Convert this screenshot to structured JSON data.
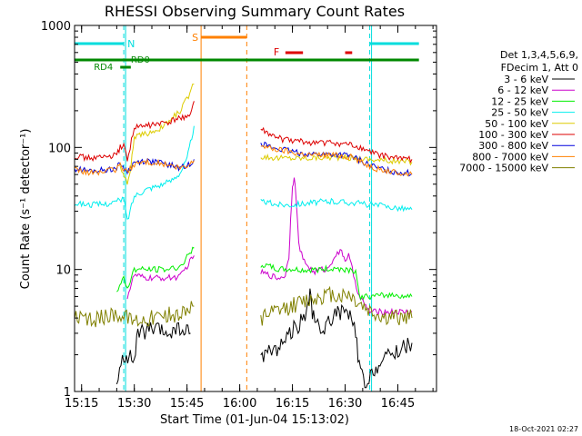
{
  "chart_data": {
    "type": "line",
    "title": "RHESSI Observing Summary Count Rates",
    "xlabel": "Start Time (01-Jun-04 15:13:02)",
    "ylabel": "Count Rate (s⁻¹ detector⁻¹)",
    "yscale": "log",
    "ylim": [
      1,
      1000
    ],
    "xlim_minutes": [
      0,
      103
    ],
    "x_ticks": [
      {
        "label": "15:15",
        "m": 2
      },
      {
        "label": "15:30",
        "m": 17
      },
      {
        "label": "15:45",
        "m": 32
      },
      {
        "label": "16:00",
        "m": 47
      },
      {
        "label": "16:15",
        "m": 62
      },
      {
        "label": "16:30",
        "m": 77
      },
      {
        "label": "16:45",
        "m": 92
      }
    ],
    "y_ticks": [
      {
        "label": "1",
        "v": 1
      },
      {
        "label": "10",
        "v": 10
      },
      {
        "label": "100",
        "v": 100
      },
      {
        "label": "1000",
        "v": 1000
      }
    ],
    "legend_header": [
      "Det 1,3,4,5,6,9,",
      "FDecim 1, Att 0"
    ],
    "legend_position": "right",
    "gap_minutes": [
      35,
      53
    ],
    "series": [
      {
        "name": "3 - 6 keV",
        "color": "#000000",
        "points": [
          [
            12,
            1.1
          ],
          [
            14,
            2
          ],
          [
            17,
            1.8
          ],
          [
            18,
            3
          ],
          [
            22,
            3.2
          ],
          [
            26,
            3
          ],
          [
            30,
            3.2
          ],
          [
            33,
            3
          ],
          [
            53,
            2
          ],
          [
            58,
            2.3
          ],
          [
            62,
            3.2
          ],
          [
            64,
            3.6
          ],
          [
            66,
            4.5
          ],
          [
            67,
            6
          ],
          [
            68,
            4
          ],
          [
            70,
            3
          ],
          [
            73,
            4
          ],
          [
            76,
            4.5
          ],
          [
            78,
            4.3
          ],
          [
            80,
            3
          ],
          [
            81,
            1.6
          ],
          [
            83,
            1
          ],
          [
            85,
            1.5
          ],
          [
            90,
            2
          ],
          [
            96,
            2.5
          ]
        ]
      },
      {
        "name": "6 - 12 keV",
        "color": "#cc00cc",
        "points": [
          [
            15,
            6
          ],
          [
            17,
            9
          ],
          [
            20,
            8.5
          ],
          [
            25,
            8.5
          ],
          [
            30,
            8.7
          ],
          [
            34,
            13
          ],
          [
            53,
            9.5
          ],
          [
            58,
            8.5
          ],
          [
            60,
            9
          ],
          [
            61,
            13
          ],
          [
            61.5,
            26
          ],
          [
            62,
            50
          ],
          [
            62.5,
            55
          ],
          [
            63,
            42
          ],
          [
            63.8,
            16
          ],
          [
            65,
            12
          ],
          [
            68,
            9.5
          ],
          [
            70,
            10
          ],
          [
            72,
            10
          ],
          [
            74,
            13
          ],
          [
            76,
            14
          ],
          [
            77,
            12
          ],
          [
            78,
            13
          ],
          [
            79,
            10
          ],
          [
            81,
            6
          ],
          [
            84,
            4.5
          ],
          [
            88,
            4.5
          ],
          [
            96,
            4.5
          ]
        ]
      },
      {
        "name": "12 - 25 keV",
        "color": "#00ee00",
        "points": [
          [
            12,
            6.5
          ],
          [
            14,
            8.5
          ],
          [
            15,
            7
          ],
          [
            17,
            10
          ],
          [
            22,
            10
          ],
          [
            26,
            10
          ],
          [
            30,
            10.5
          ],
          [
            34,
            15
          ],
          [
            53,
            11
          ],
          [
            58,
            10
          ],
          [
            62,
            10
          ],
          [
            66,
            9.8
          ],
          [
            70,
            10
          ],
          [
            75,
            10.2
          ],
          [
            80,
            9.8
          ],
          [
            81,
            6
          ],
          [
            85,
            6
          ],
          [
            90,
            6.2
          ],
          [
            96,
            6
          ]
        ]
      },
      {
        "name": "25 - 50 keV",
        "color": "#00eeee",
        "points": [
          [
            0,
            35
          ],
          [
            4,
            34
          ],
          [
            8,
            34
          ],
          [
            12,
            36
          ],
          [
            14,
            38
          ],
          [
            15,
            25
          ],
          [
            17,
            40
          ],
          [
            20,
            45
          ],
          [
            23,
            48
          ],
          [
            27,
            52
          ],
          [
            30,
            62
          ],
          [
            32,
            80
          ],
          [
            33,
            110
          ],
          [
            34,
            150
          ],
          [
            53,
            36
          ],
          [
            58,
            34
          ],
          [
            62,
            34
          ],
          [
            66,
            35
          ],
          [
            70,
            36
          ],
          [
            75,
            36
          ],
          [
            80,
            35
          ],
          [
            84,
            34
          ],
          [
            88,
            33
          ],
          [
            92,
            32
          ],
          [
            96,
            31
          ]
        ]
      },
      {
        "name": "50 - 100 keV",
        "color": "#ddcc00",
        "points": [
          [
            13,
            70
          ],
          [
            15,
            50
          ],
          [
            16,
            70
          ],
          [
            17,
            120
          ],
          [
            20,
            128
          ],
          [
            25,
            145
          ],
          [
            30,
            200
          ],
          [
            32,
            250
          ],
          [
            34,
            330
          ],
          [
            53,
            85
          ],
          [
            58,
            82
          ],
          [
            62,
            82
          ],
          [
            66,
            82
          ],
          [
            70,
            83
          ],
          [
            75,
            83
          ],
          [
            80,
            82
          ],
          [
            84,
            80
          ],
          [
            88,
            78
          ],
          [
            92,
            77
          ],
          [
            96,
            76
          ]
        ]
      },
      {
        "name": "100 - 300 keV",
        "color": "#dd0000",
        "points": [
          [
            0,
            85
          ],
          [
            4,
            82
          ],
          [
            8,
            83
          ],
          [
            12,
            86
          ],
          [
            13,
            100
          ],
          [
            14,
            105
          ],
          [
            15,
            80
          ],
          [
            17,
            145
          ],
          [
            20,
            150
          ],
          [
            23,
            155
          ],
          [
            27,
            160
          ],
          [
            30,
            175
          ],
          [
            33,
            185
          ],
          [
            34,
            240
          ],
          [
            53,
            140
          ],
          [
            56,
            125
          ],
          [
            60,
            115
          ],
          [
            64,
            112
          ],
          [
            66,
            110
          ],
          [
            70,
            110
          ],
          [
            75,
            108
          ],
          [
            78,
            105
          ],
          [
            81,
            100
          ],
          [
            84,
            92
          ],
          [
            88,
            85
          ],
          [
            92,
            82
          ],
          [
            96,
            80
          ]
        ]
      },
      {
        "name": "300 - 800 keV",
        "color": "#0000dd",
        "points": [
          [
            0,
            67
          ],
          [
            4,
            64
          ],
          [
            8,
            65
          ],
          [
            12,
            68
          ],
          [
            13,
            74
          ],
          [
            15,
            63
          ],
          [
            17,
            75
          ],
          [
            20,
            78
          ],
          [
            23,
            76
          ],
          [
            27,
            72
          ],
          [
            30,
            68
          ],
          [
            32,
            70
          ],
          [
            34,
            80
          ],
          [
            53,
            110
          ],
          [
            56,
            100
          ],
          [
            60,
            95
          ],
          [
            64,
            90
          ],
          [
            68,
            88
          ],
          [
            72,
            88
          ],
          [
            76,
            87
          ],
          [
            79,
            84
          ],
          [
            82,
            76
          ],
          [
            86,
            68
          ],
          [
            90,
            64
          ],
          [
            94,
            62
          ],
          [
            96,
            61
          ]
        ]
      },
      {
        "name": "800 - 7000 keV",
        "color": "#ff8000",
        "points": [
          [
            0,
            65
          ],
          [
            4,
            62
          ],
          [
            8,
            63
          ],
          [
            12,
            66
          ],
          [
            13,
            72
          ],
          [
            15,
            62
          ],
          [
            17,
            73
          ],
          [
            20,
            76
          ],
          [
            23,
            75
          ],
          [
            27,
            71
          ],
          [
            30,
            67
          ],
          [
            32,
            69
          ],
          [
            34,
            78
          ],
          [
            53,
            105
          ],
          [
            56,
            98
          ],
          [
            60,
            94
          ],
          [
            64,
            89
          ],
          [
            68,
            87
          ],
          [
            72,
            87
          ],
          [
            76,
            86
          ],
          [
            79,
            83
          ],
          [
            82,
            75
          ],
          [
            86,
            67
          ],
          [
            90,
            63
          ],
          [
            94,
            61
          ],
          [
            96,
            60
          ]
        ]
      },
      {
        "name": "7000 - 15000 keV",
        "color": "#808000",
        "points": [
          [
            0,
            4
          ],
          [
            4,
            3.8
          ],
          [
            8,
            4
          ],
          [
            12,
            4.5
          ],
          [
            14,
            4
          ],
          [
            16,
            3.9
          ],
          [
            20,
            4
          ],
          [
            25,
            4.2
          ],
          [
            30,
            4.3
          ],
          [
            34,
            5
          ],
          [
            53,
            4
          ],
          [
            58,
            4.5
          ],
          [
            62,
            5
          ],
          [
            66,
            5.5
          ],
          [
            70,
            6
          ],
          [
            73,
            6.2
          ],
          [
            76,
            6
          ],
          [
            78,
            6.3
          ],
          [
            80,
            5.5
          ],
          [
            84,
            4.5
          ],
          [
            88,
            4
          ],
          [
            92,
            4
          ],
          [
            96,
            4
          ]
        ]
      }
    ],
    "annotations": {
      "night_label": "N",
      "saa_label": "S",
      "flare_label": "F",
      "rd0_label": "RD0",
      "rd4_label": "RD4"
    },
    "annotation_intervals": {
      "night": [
        [
          0,
          14
        ],
        [
          84,
          98
        ]
      ],
      "saa": [
        36,
        49
      ],
      "flare": [
        [
          60,
          65
        ],
        [
          77,
          79
        ]
      ],
      "rd0": [
        0,
        98
      ],
      "rd4": [
        13,
        16
      ]
    },
    "night_bounds_minutes": [
      14,
      84
    ],
    "saa_bounds_minutes": [
      36,
      49
    ],
    "night_boundary_color": "#00dddd",
    "saa_boundary_color": "#ff8000",
    "flare_color": "#dd0000",
    "rd_color": "#008800"
  },
  "timestamp": "18-Oct-2021 02:27"
}
